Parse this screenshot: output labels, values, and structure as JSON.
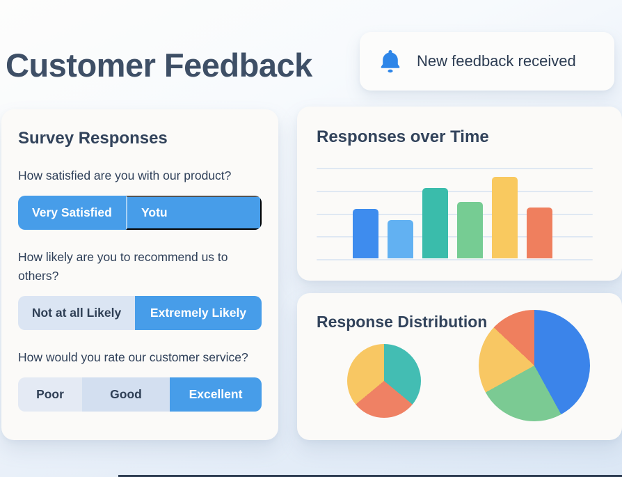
{
  "page": {
    "title": "Customer Feedback"
  },
  "notification": {
    "icon": "bell",
    "icon_color": "#2e86e8",
    "text": "New feedback received"
  },
  "survey": {
    "title": "Survey Responses",
    "selected_color": "#479de9",
    "questions": [
      {
        "text": "How satisfied are you with our product?",
        "options": [
          {
            "label": "Very Satisfied",
            "selected": true
          },
          {
            "label": "Yotu",
            "selected": true
          }
        ]
      },
      {
        "text": "How likely are you to recommend us to others?",
        "options": [
          {
            "label": "Not at all Likely",
            "selected": false
          },
          {
            "label": "Extremely Likely",
            "selected": true
          }
        ]
      },
      {
        "text": "How would you rate our customer service?",
        "options": [
          {
            "label": "Poor",
            "selected": false
          },
          {
            "label": "Good",
            "selected": false
          },
          {
            "label": "Excellent",
            "selected": true
          }
        ]
      }
    ]
  },
  "chart_data": [
    {
      "type": "bar",
      "title": "Responses over Time",
      "categories": [
        "",
        "",
        "",
        "",
        "",
        ""
      ],
      "values": [
        55,
        42,
        78,
        62,
        90,
        56
      ],
      "colors": [
        "#3e8cee",
        "#62b1f2",
        "#3abcab",
        "#76cc93",
        "#f9c95f",
        "#ef7f5e"
      ],
      "ylim": [
        0,
        100
      ],
      "grid": true,
      "gridline_count": 5,
      "axis_tick_labels": "none",
      "xlabel": "",
      "ylabel": ""
    },
    {
      "type": "pie",
      "title": "Response Distribution",
      "pies": [
        {
          "name": "small-pie",
          "slices": [
            {
              "color": "#43bdb3",
              "value": 36
            },
            {
              "color": "#ef8164",
              "value": 28
            },
            {
              "color": "#f8c763",
              "value": 36
            }
          ]
        },
        {
          "name": "large-pie",
          "slices": [
            {
              "color": "#3b84ea",
              "value": 42
            },
            {
              "color": "#7bca93",
              "value": 25
            },
            {
              "color": "#f8c763",
              "value": 20
            },
            {
              "color": "#ef7f5e",
              "value": 13
            }
          ]
        }
      ]
    }
  ]
}
